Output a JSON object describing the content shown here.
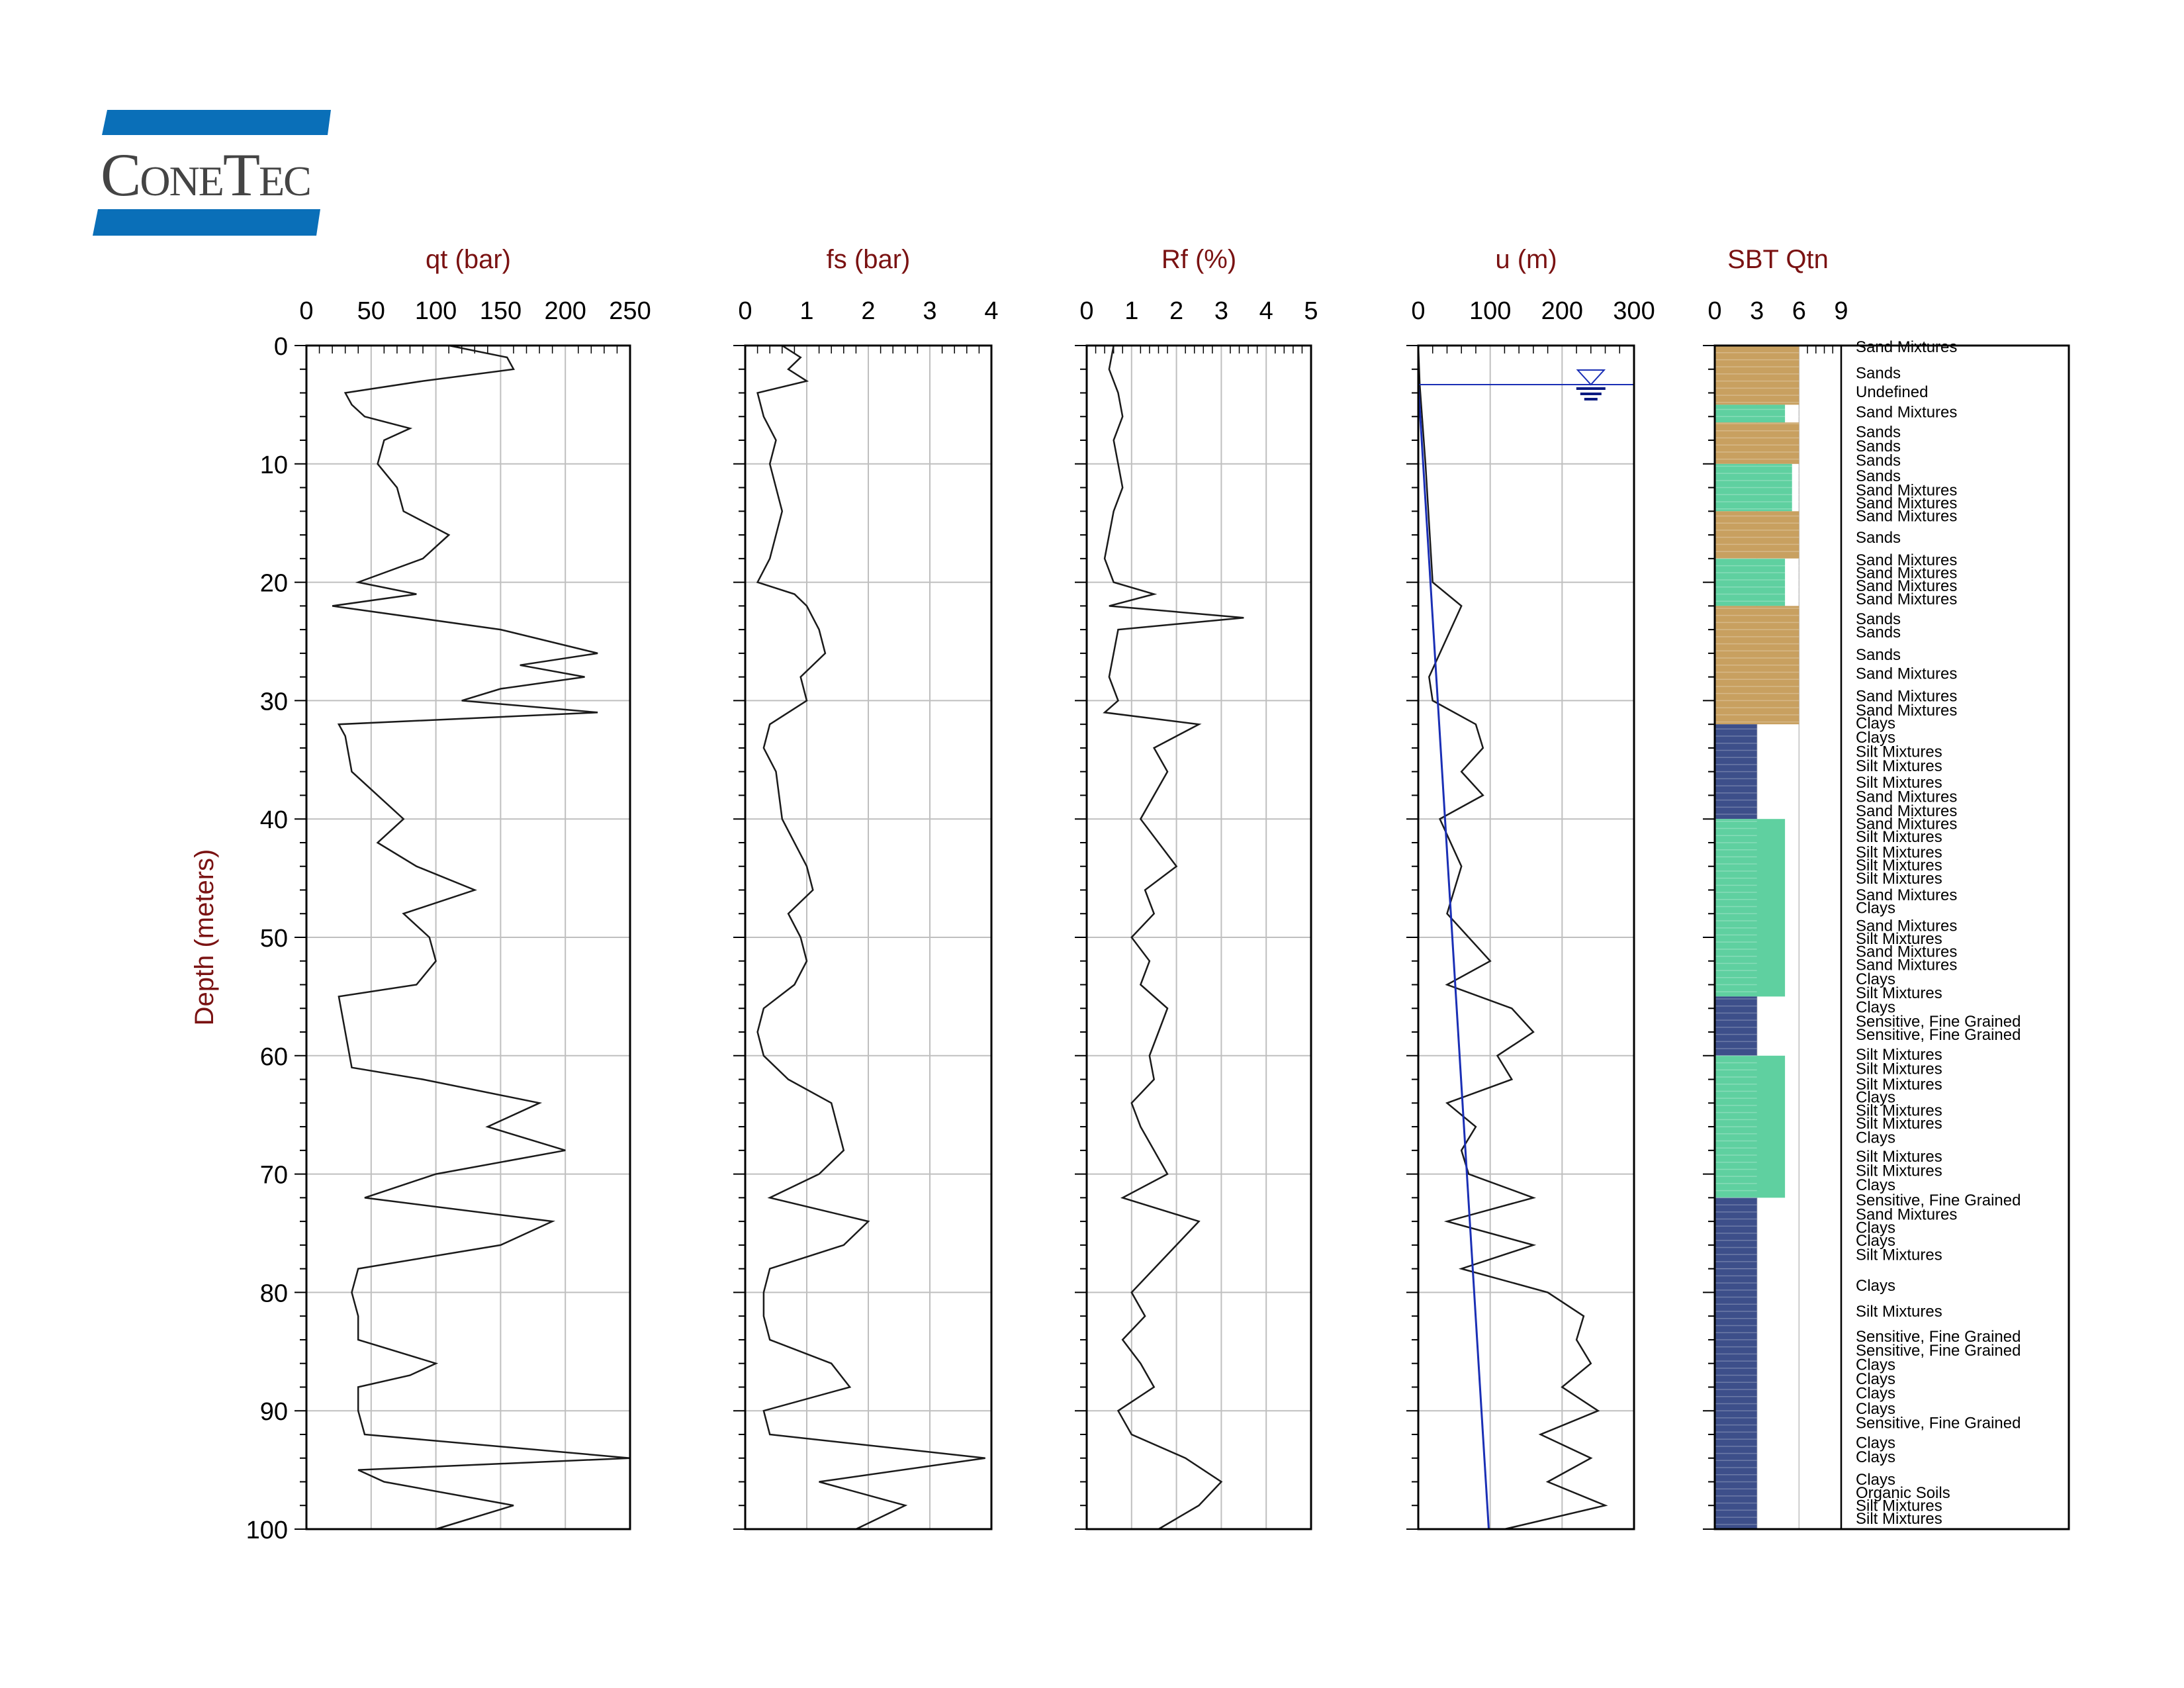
{
  "logo": {
    "name": "ConeTec",
    "colors": {
      "bar": "#0a6fb8",
      "text": "#444444"
    }
  },
  "colors": {
    "title": "#7a1212",
    "trace": "#1a1a1a",
    "grid": "#bfbfbf",
    "pore_line": "#1a2fb5",
    "sbt": {
      "sand": "#c8a060",
      "mixture": "#5fd0a0",
      "clay": "#3d4f8a",
      "sensitive": "#b03040",
      "organic": "#7a4a2a"
    }
  },
  "depth_axis": {
    "label": "Depth (meters)",
    "range": [
      0,
      100
    ],
    "ticks": [
      0,
      10,
      20,
      30,
      40,
      50,
      60,
      70,
      80,
      90,
      100
    ]
  },
  "chart_data": [
    {
      "type": "line",
      "title": "qt (bar)",
      "xlim": [
        0,
        250
      ],
      "ticks": [
        "0",
        "50",
        "100",
        "150",
        "200",
        "250"
      ],
      "grid": true,
      "y_reversed": true,
      "series": [
        {
          "depth": [
            0,
            1,
            2,
            3,
            4,
            5,
            6,
            7,
            8,
            10,
            12,
            14,
            16,
            18,
            20,
            21,
            22,
            24,
            26,
            27,
            28,
            29,
            30,
            31,
            32,
            33,
            36,
            40,
            42,
            44,
            46,
            48,
            50,
            52,
            54,
            55,
            58,
            61,
            62,
            64,
            66,
            68,
            70,
            72,
            74,
            76,
            78,
            80,
            82,
            84,
            86,
            87,
            88,
            90,
            92,
            94,
            95,
            96,
            98,
            100
          ],
          "values": [
            110,
            155,
            160,
            90,
            30,
            35,
            45,
            80,
            60,
            55,
            70,
            75,
            110,
            90,
            40,
            85,
            20,
            150,
            225,
            165,
            215,
            150,
            120,
            225,
            25,
            30,
            35,
            75,
            55,
            85,
            130,
            75,
            95,
            100,
            85,
            25,
            30,
            35,
            90,
            180,
            140,
            200,
            100,
            45,
            190,
            150,
            40,
            35,
            40,
            40,
            100,
            80,
            40,
            40,
            45,
            250,
            40,
            60,
            160,
            100
          ]
        }
      ]
    },
    {
      "type": "line",
      "title": "fs (bar)",
      "xlim": [
        0,
        4
      ],
      "ticks": [
        "0",
        "1",
        "2",
        "3",
        "4"
      ],
      "grid": true,
      "y_reversed": true,
      "series": [
        {
          "depth": [
            0,
            1,
            2,
            3,
            4,
            6,
            8,
            10,
            12,
            14,
            16,
            18,
            20,
            21,
            22,
            24,
            26,
            28,
            30,
            32,
            34,
            36,
            40,
            44,
            46,
            48,
            50,
            52,
            54,
            56,
            58,
            60,
            62,
            64,
            66,
            68,
            70,
            72,
            74,
            76,
            78,
            80,
            82,
            84,
            86,
            88,
            90,
            92,
            94,
            96,
            98,
            100
          ],
          "values": [
            0.6,
            0.9,
            0.7,
            1.0,
            0.2,
            0.3,
            0.5,
            0.4,
            0.5,
            0.6,
            0.5,
            0.4,
            0.2,
            0.8,
            1.0,
            1.2,
            1.3,
            0.9,
            1.0,
            0.4,
            0.3,
            0.5,
            0.6,
            1.0,
            1.1,
            0.7,
            0.9,
            1.0,
            0.8,
            0.3,
            0.2,
            0.3,
            0.7,
            1.4,
            1.5,
            1.6,
            1.2,
            0.4,
            2.0,
            1.6,
            0.4,
            0.3,
            0.3,
            0.4,
            1.4,
            1.7,
            0.3,
            0.4,
            3.9,
            1.2,
            2.6,
            1.8
          ]
        }
      ]
    },
    {
      "type": "line",
      "title": "Rf (%)",
      "xlim": [
        0,
        5
      ],
      "ticks": [
        "0",
        "1",
        "2",
        "3",
        "4",
        "5"
      ],
      "grid": true,
      "y_reversed": true,
      "series": [
        {
          "depth": [
            0,
            2,
            4,
            6,
            8,
            10,
            12,
            14,
            16,
            18,
            20,
            21,
            22,
            23,
            24,
            26,
            28,
            30,
            31,
            32,
            34,
            36,
            40,
            42,
            44,
            46,
            48,
            50,
            52,
            54,
            56,
            58,
            60,
            62,
            64,
            66,
            68,
            70,
            72,
            74,
            76,
            78,
            80,
            82,
            84,
            86,
            88,
            90,
            92,
            94,
            96,
            98,
            100
          ],
          "values": [
            0.6,
            0.5,
            0.7,
            0.8,
            0.6,
            0.7,
            0.8,
            0.6,
            0.5,
            0.4,
            0.6,
            1.5,
            0.5,
            3.5,
            0.7,
            0.6,
            0.5,
            0.7,
            0.4,
            2.5,
            1.5,
            1.8,
            1.2,
            1.6,
            2.0,
            1.3,
            1.5,
            1.0,
            1.4,
            1.2,
            1.8,
            1.6,
            1.4,
            1.5,
            1.0,
            1.2,
            1.5,
            1.8,
            0.8,
            2.5,
            2.0,
            1.5,
            1.0,
            1.3,
            0.8,
            1.2,
            1.5,
            0.7,
            1.0,
            2.2,
            3.0,
            2.5,
            1.6
          ]
        }
      ]
    },
    {
      "type": "line",
      "title": "u (m)",
      "xlim": [
        0,
        300
      ],
      "ticks": [
        "0",
        "100",
        "200",
        "300"
      ],
      "grid": true,
      "y_reversed": true,
      "water_table_depth": 3.3,
      "series": [
        {
          "name": "u",
          "depth": [
            0,
            3.3,
            10,
            20,
            22,
            28,
            30,
            32,
            34,
            36,
            38,
            40,
            44,
            48,
            52,
            54,
            56,
            58,
            60,
            62,
            64,
            66,
            68,
            70,
            72,
            74,
            76,
            78,
            80,
            82,
            84,
            86,
            88,
            90,
            92,
            94,
            96,
            98,
            100
          ],
          "values": [
            0,
            2,
            10,
            20,
            60,
            15,
            20,
            80,
            90,
            60,
            90,
            30,
            60,
            40,
            100,
            40,
            130,
            160,
            110,
            130,
            40,
            80,
            60,
            70,
            160,
            40,
            160,
            60,
            180,
            230,
            220,
            240,
            200,
            250,
            170,
            240,
            180,
            260,
            120
          ]
        },
        {
          "name": "u0",
          "depth": [
            3.3,
            100
          ],
          "values": [
            0,
            98
          ]
        }
      ]
    },
    {
      "type": "bar",
      "title": "SBT Qtn",
      "xlim": [
        0,
        9
      ],
      "ticks": [
        "0",
        "3",
        "6",
        "9"
      ],
      "y_reversed": true,
      "layers": [
        {
          "from": 0,
          "to": 5,
          "zone": 6,
          "kind": "sand"
        },
        {
          "from": 5,
          "to": 6.5,
          "zone": 5,
          "kind": "mixture"
        },
        {
          "from": 6.5,
          "to": 10,
          "zone": 6,
          "kind": "sand"
        },
        {
          "from": 10,
          "to": 14,
          "zone": 5.5,
          "kind": "mixture"
        },
        {
          "from": 14,
          "to": 18,
          "zone": 6,
          "kind": "sand"
        },
        {
          "from": 18,
          "to": 22,
          "zone": 5,
          "kind": "mixture"
        },
        {
          "from": 22,
          "to": 32,
          "zone": 6,
          "kind": "sand"
        },
        {
          "from": 32,
          "to": 40,
          "zone": 3,
          "kind": "clay"
        },
        {
          "from": 40,
          "to": 55,
          "zone": 5,
          "kind": "mixture"
        },
        {
          "from": 55,
          "to": 60,
          "zone": 3,
          "kind": "clay"
        },
        {
          "from": 60,
          "to": 72,
          "zone": 5,
          "kind": "mixture"
        },
        {
          "from": 72,
          "to": 78,
          "zone": 3,
          "kind": "clay"
        },
        {
          "from": 78,
          "to": 100,
          "zone": 3,
          "kind": "clay"
        }
      ],
      "labels": [
        {
          "depth": 0,
          "text": "Sand Mixtures"
        },
        {
          "depth": 2.2,
          "text": "Sands"
        },
        {
          "depth": 3.8,
          "text": "Undefined"
        },
        {
          "depth": 5.5,
          "text": "Sand Mixtures"
        },
        {
          "depth": 7.2,
          "text": "Sands"
        },
        {
          "depth": 8.4,
          "text": "Sands"
        },
        {
          "depth": 9.6,
          "text": "Sands"
        },
        {
          "depth": 10.9,
          "text": "Sands"
        },
        {
          "depth": 12.1,
          "text": "Sand Mixtures"
        },
        {
          "depth": 13.2,
          "text": "Sand Mixtures"
        },
        {
          "depth": 14.3,
          "text": "Sand Mixtures"
        },
        {
          "depth": 16.1,
          "text": "Sands"
        },
        {
          "depth": 18.0,
          "text": "Sand Mixtures"
        },
        {
          "depth": 19.1,
          "text": "Sand Mixtures"
        },
        {
          "depth": 20.2,
          "text": "Sand Mixtures"
        },
        {
          "depth": 21.3,
          "text": "Sand Mixtures"
        },
        {
          "depth": 23.0,
          "text": "Sands"
        },
        {
          "depth": 24.1,
          "text": "Sands"
        },
        {
          "depth": 26.0,
          "text": "Sands"
        },
        {
          "depth": 27.6,
          "text": "Sand Mixtures"
        },
        {
          "depth": 29.5,
          "text": "Sand Mixtures"
        },
        {
          "depth": 30.7,
          "text": "Sand Mixtures"
        },
        {
          "depth": 31.8,
          "text": "Clays"
        },
        {
          "depth": 33.0,
          "text": "Clays"
        },
        {
          "depth": 34.2,
          "text": "Silt Mixtures"
        },
        {
          "depth": 35.4,
          "text": "Silt Mixtures"
        },
        {
          "depth": 36.8,
          "text": "Silt Mixtures"
        },
        {
          "depth": 38.0,
          "text": "Sand Mixtures"
        },
        {
          "depth": 39.2,
          "text": "Sand Mixtures"
        },
        {
          "depth": 40.3,
          "text": "Sand Mixtures"
        },
        {
          "depth": 41.4,
          "text": "Silt Mixtures"
        },
        {
          "depth": 42.7,
          "text": "Silt Mixtures"
        },
        {
          "depth": 43.8,
          "text": "Silt Mixtures"
        },
        {
          "depth": 44.9,
          "text": "Silt Mixtures"
        },
        {
          "depth": 46.3,
          "text": "Sand Mixtures"
        },
        {
          "depth": 47.4,
          "text": "Clays"
        },
        {
          "depth": 48.9,
          "text": "Sand Mixtures"
        },
        {
          "depth": 50.0,
          "text": "Silt Mixtures"
        },
        {
          "depth": 51.1,
          "text": "Sand Mixtures"
        },
        {
          "depth": 52.2,
          "text": "Sand Mixtures"
        },
        {
          "depth": 53.4,
          "text": "Clays"
        },
        {
          "depth": 54.6,
          "text": "Silt Mixtures"
        },
        {
          "depth": 55.8,
          "text": "Clays"
        },
        {
          "depth": 57.0,
          "text": "Sensitive, Fine Grained"
        },
        {
          "depth": 58.1,
          "text": "Sensitive, Fine Grained"
        },
        {
          "depth": 59.8,
          "text": "Silt Mixtures"
        },
        {
          "depth": 61.0,
          "text": "Silt Mixtures"
        },
        {
          "depth": 62.3,
          "text": "Silt Mixtures"
        },
        {
          "depth": 63.4,
          "text": "Clays"
        },
        {
          "depth": 64.5,
          "text": "Silt Mixtures"
        },
        {
          "depth": 65.6,
          "text": "Silt Mixtures"
        },
        {
          "depth": 66.8,
          "text": "Clays"
        },
        {
          "depth": 68.4,
          "text": "Silt Mixtures"
        },
        {
          "depth": 69.6,
          "text": "Silt Mixtures"
        },
        {
          "depth": 70.8,
          "text": "Clays"
        },
        {
          "depth": 72.1,
          "text": "Sensitive, Fine Grained"
        },
        {
          "depth": 73.3,
          "text": "Sand Mixtures"
        },
        {
          "depth": 74.4,
          "text": "Clays"
        },
        {
          "depth": 75.5,
          "text": "Clays"
        },
        {
          "depth": 76.7,
          "text": "Silt Mixtures"
        },
        {
          "depth": 79.3,
          "text": "Clays"
        },
        {
          "depth": 81.5,
          "text": "Silt Mixtures"
        },
        {
          "depth": 83.6,
          "text": "Sensitive, Fine Grained"
        },
        {
          "depth": 84.8,
          "text": "Sensitive, Fine Grained"
        },
        {
          "depth": 86.0,
          "text": "Clays"
        },
        {
          "depth": 87.2,
          "text": "Clays"
        },
        {
          "depth": 88.4,
          "text": "Clays"
        },
        {
          "depth": 89.7,
          "text": "Clays"
        },
        {
          "depth": 90.9,
          "text": "Sensitive, Fine Grained"
        },
        {
          "depth": 92.6,
          "text": "Clays"
        },
        {
          "depth": 93.8,
          "text": "Clays"
        },
        {
          "depth": 95.7,
          "text": "Clays"
        },
        {
          "depth": 96.8,
          "text": "Organic Soils"
        },
        {
          "depth": 97.9,
          "text": "Silt Mixtures"
        },
        {
          "depth": 99.0,
          "text": "Silt Mixtures"
        }
      ]
    }
  ]
}
